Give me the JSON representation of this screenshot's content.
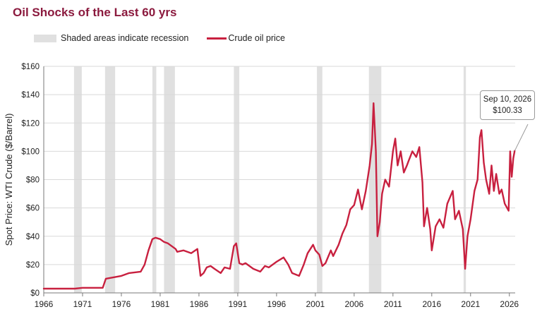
{
  "title": "Oil Shocks of the Last 60 yrs",
  "legend": {
    "recession_label": "Shaded areas indicate recession",
    "series_label": "Crude oil price"
  },
  "colors": {
    "series": "#c8203f",
    "recession": "#e0e0e0",
    "title": "#8b1a3e",
    "grid": "#d9d9d9"
  },
  "callout": {
    "date": "Sep 10, 2026",
    "value": "$100.33"
  },
  "chart_data": {
    "type": "line",
    "ylabel": "Spot Price: WTI Crude ($/Barrel)",
    "xlim": [
      1966,
      2026.75
    ],
    "ylim": [
      0,
      160
    ],
    "x_ticks": [
      1966,
      1971,
      1976,
      1981,
      1986,
      1991,
      1996,
      2001,
      2006,
      2011,
      2016,
      2021,
      2026
    ],
    "y_ticks": [
      0,
      20,
      40,
      60,
      80,
      100,
      120,
      140,
      160
    ],
    "y_tick_labels": [
      "$0",
      "$20",
      "$40",
      "$60",
      "$80",
      "$100",
      "$120",
      "$140",
      "$160"
    ],
    "grid": "horizontal",
    "recessions": [
      [
        1969.9,
        1970.9
      ],
      [
        1973.9,
        1975.2
      ],
      [
        1980.0,
        1980.5
      ],
      [
        1981.5,
        1982.9
      ],
      [
        1990.5,
        1991.2
      ],
      [
        2001.2,
        2001.9
      ],
      [
        2007.9,
        2009.5
      ],
      [
        2020.1,
        2020.4
      ]
    ],
    "series": [
      {
        "name": "Crude oil price",
        "x": [
          1966,
          1970,
          1971,
          1973.6,
          1974.0,
          1975,
          1976,
          1977,
          1978.5,
          1979,
          1979.5,
          1980,
          1980.4,
          1981,
          1981.5,
          1982,
          1983,
          1983.2,
          1984,
          1985,
          1985.8,
          1986.2,
          1986.6,
          1987,
          1987.5,
          1988,
          1988.8,
          1989.3,
          1990,
          1990.5,
          1990.8,
          1991.2,
          1991.6,
          1992,
          1993,
          1993.9,
          1994.5,
          1995,
          1996,
          1996.9,
          1997.5,
          1998,
          1998.9,
          1999.5,
          2000,
          2000.7,
          2001,
          2001.5,
          2001.9,
          2002.3,
          2003,
          2003.3,
          2004,
          2004.5,
          2005,
          2005.5,
          2006,
          2006.5,
          2007,
          2007.5,
          2008,
          2008.3,
          2008.5,
          2008.8,
          2009.0,
          2009.3,
          2009.6,
          2010,
          2010.5,
          2011,
          2011.3,
          2011.6,
          2012,
          2012.4,
          2012.8,
          2013,
          2013.5,
          2014,
          2014.4,
          2014.8,
          2015,
          2015.4,
          2015.8,
          2016,
          2016.5,
          2017,
          2017.5,
          2018,
          2018.7,
          2019,
          2019.5,
          2020,
          2020.3,
          2020.6,
          2021,
          2021.5,
          2021.9,
          2022.2,
          2022.4,
          2022.7,
          2023,
          2023.4,
          2023.7,
          2024,
          2024.3,
          2024.7,
          2025,
          2025.4,
          2025.9,
          2026.1,
          2026.3,
          2026.5,
          2026.69
        ],
        "values": [
          3,
          3,
          3.6,
          3.6,
          10.0,
          11,
          12,
          14,
          15,
          20,
          30,
          38,
          39,
          38,
          36,
          35,
          31,
          29,
          30,
          28,
          31,
          12,
          14,
          18,
          19,
          17,
          14,
          18,
          17,
          33,
          35,
          21,
          20,
          21,
          17,
          15,
          19,
          18,
          22,
          25,
          20,
          14,
          12,
          20,
          28,
          34,
          30,
          27,
          19,
          21,
          30,
          26,
          34,
          42,
          48,
          59,
          62,
          73,
          59,
          72,
          90,
          105,
          134,
          100,
          40,
          50,
          70,
          80,
          75,
          100,
          109,
          90,
          100,
          85,
          90,
          93,
          100,
          96,
          103,
          78,
          47,
          60,
          45,
          30,
          47,
          52,
          46,
          63,
          72,
          52,
          58,
          45,
          17,
          40,
          52,
          72,
          80,
          110,
          115,
          92,
          80,
          70,
          90,
          72,
          84,
          70,
          73,
          63,
          58,
          100,
          82,
          95,
          100.33
        ]
      }
    ]
  }
}
